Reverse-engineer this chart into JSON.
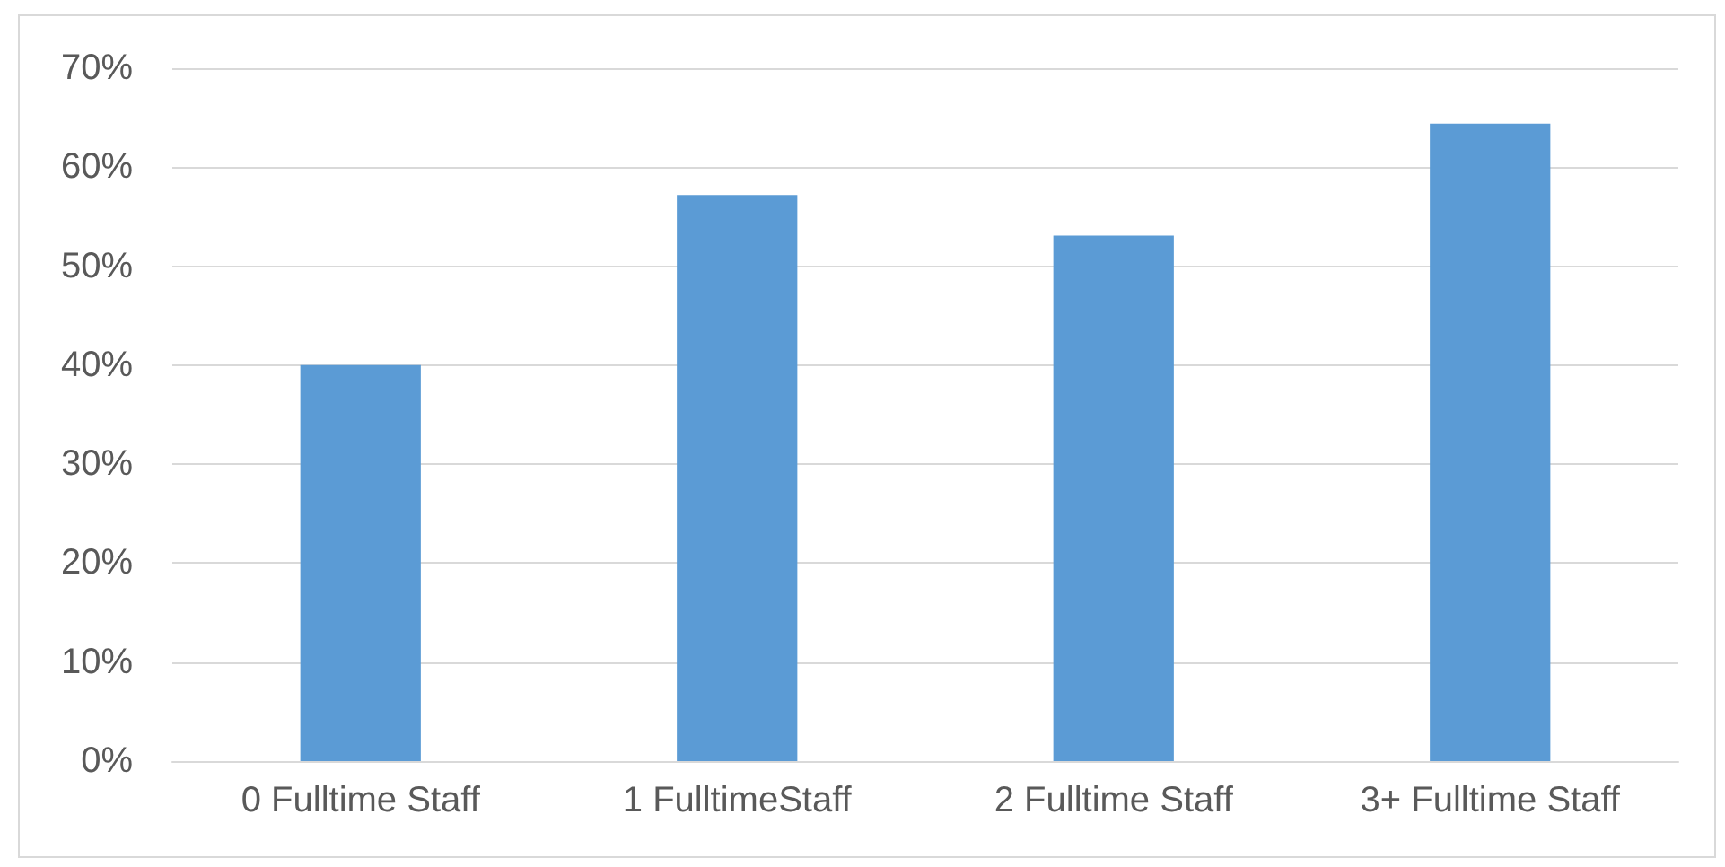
{
  "chart_data": {
    "type": "bar",
    "categories": [
      "0 Fulltime Staff",
      "1 FulltimeStaff",
      "2 Fulltime Staff",
      "3+ Fulltime Staff"
    ],
    "values": [
      40,
      57.2,
      53.1,
      64.4
    ],
    "color": "#5b9bd5",
    "ylim": [
      0,
      70
    ],
    "yticks": [
      {
        "value": 0,
        "label": "0%"
      },
      {
        "value": 10,
        "label": "10%"
      },
      {
        "value": 20,
        "label": "20%"
      },
      {
        "value": 30,
        "label": "30%"
      },
      {
        "value": 40,
        "label": "40%"
      },
      {
        "value": 50,
        "label": "50%"
      },
      {
        "value": 60,
        "label": "60%"
      },
      {
        "value": 70,
        "label": "70%"
      }
    ],
    "grid": "y"
  }
}
